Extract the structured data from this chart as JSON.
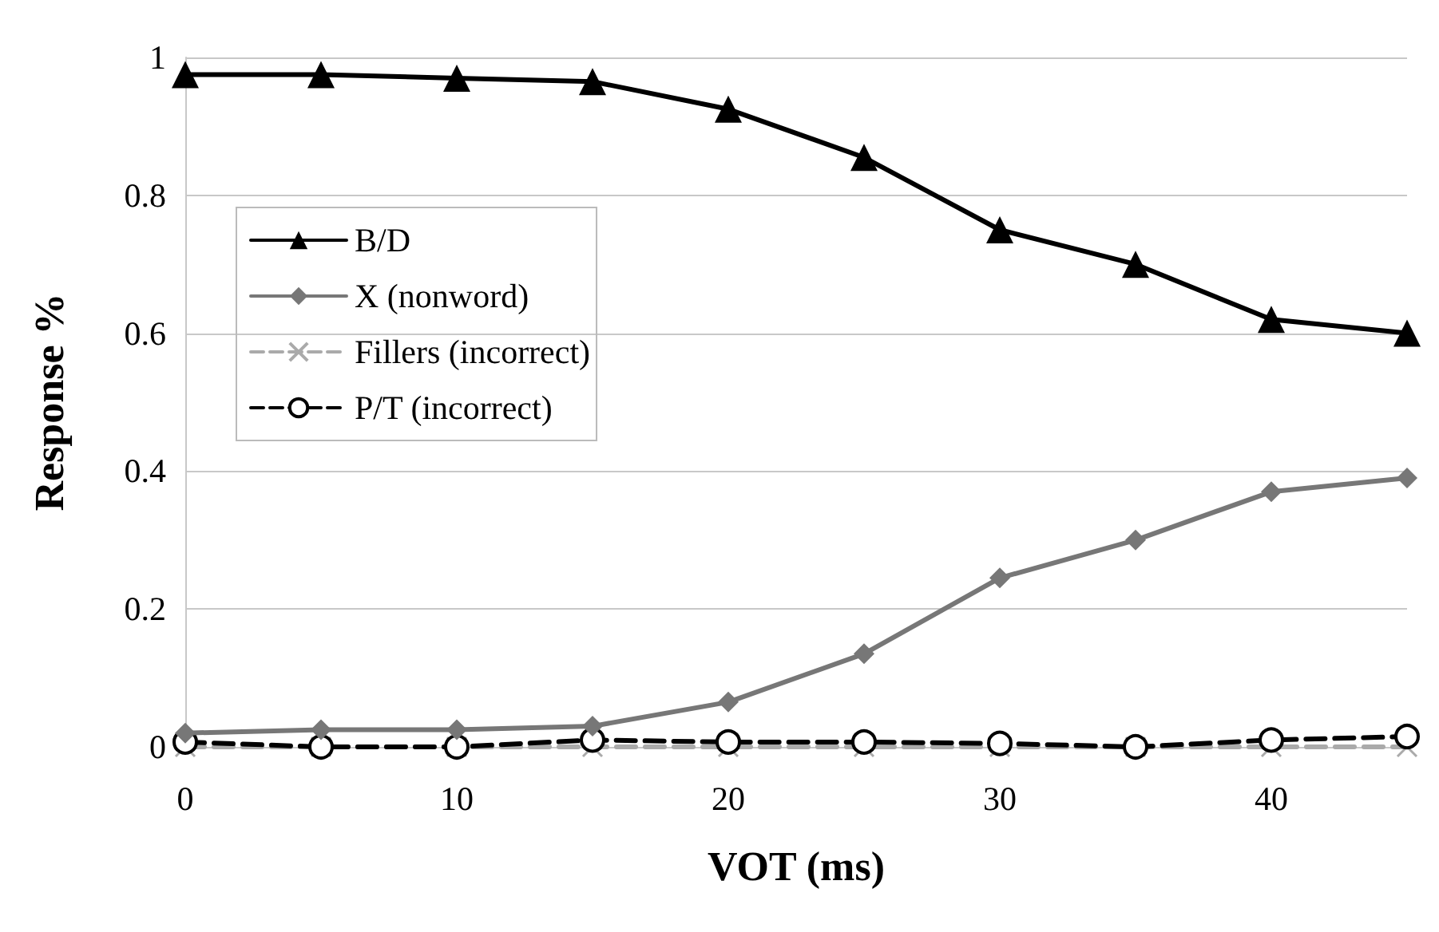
{
  "chart_data": {
    "type": "line",
    "xlabel": "VOT (ms)",
    "ylabel": "Response %",
    "x": [
      0,
      5,
      10,
      15,
      20,
      25,
      30,
      35,
      40,
      45
    ],
    "xlim": [
      0,
      45
    ],
    "xticks": [
      0,
      10,
      20,
      30,
      40
    ],
    "ylim": [
      0,
      1
    ],
    "yticks": [
      0,
      0.2,
      0.4,
      0.6,
      0.8,
      1
    ],
    "grid": "y",
    "legend": "top left",
    "series": [
      {
        "name": "B/D",
        "color": "#000000",
        "marker": "triangle",
        "line_style": "solid",
        "values": [
          0.975,
          0.975,
          0.97,
          0.965,
          0.925,
          0.855,
          0.75,
          0.7,
          0.62,
          0.6
        ]
      },
      {
        "name": "X (nonword)",
        "color": "#777777",
        "marker": "diamond",
        "line_style": "solid",
        "values": [
          0.02,
          0.025,
          0.025,
          0.03,
          0.065,
          0.135,
          0.245,
          0.3,
          0.37,
          0.39
        ]
      },
      {
        "name": "Fillers (incorrect)",
        "color": "#aaaaaa",
        "marker": "cross",
        "line_style": "dashed",
        "values": [
          0,
          0,
          0,
          0,
          0,
          0,
          0,
          0,
          0,
          0
        ]
      },
      {
        "name": "P/T (incorrect)",
        "color": "#000000",
        "marker": "circle",
        "line_style": "dashed",
        "values": [
          0.007,
          0,
          0,
          0.01,
          0.007,
          0.007,
          0.005,
          0,
          0.01,
          0.015
        ]
      }
    ]
  }
}
